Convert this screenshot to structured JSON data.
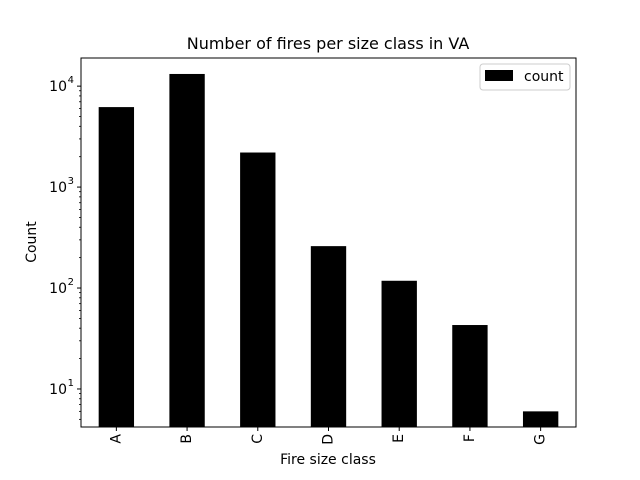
{
  "chart_data": {
    "type": "bar",
    "title": "Number of fires per size class in VA",
    "xlabel": "Fire size class",
    "ylabel": "Count",
    "categories": [
      "A",
      "B",
      "C",
      "D",
      "E",
      "F",
      "G"
    ],
    "series": [
      {
        "name": "count",
        "values": [
          6200,
          13200,
          2200,
          260,
          118,
          43,
          6
        ]
      }
    ],
    "y_scale": "log",
    "ylim": [
      4.2,
      19000
    ],
    "y_ticks": [
      {
        "value": 10,
        "base": "10",
        "exp": "1"
      },
      {
        "value": 100,
        "base": "10",
        "exp": "2"
      },
      {
        "value": 1000,
        "base": "10",
        "exp": "3"
      },
      {
        "value": 10000,
        "base": "10",
        "exp": "4"
      }
    ],
    "grid": false,
    "legend": "top-right",
    "bar_color": "#000000"
  }
}
